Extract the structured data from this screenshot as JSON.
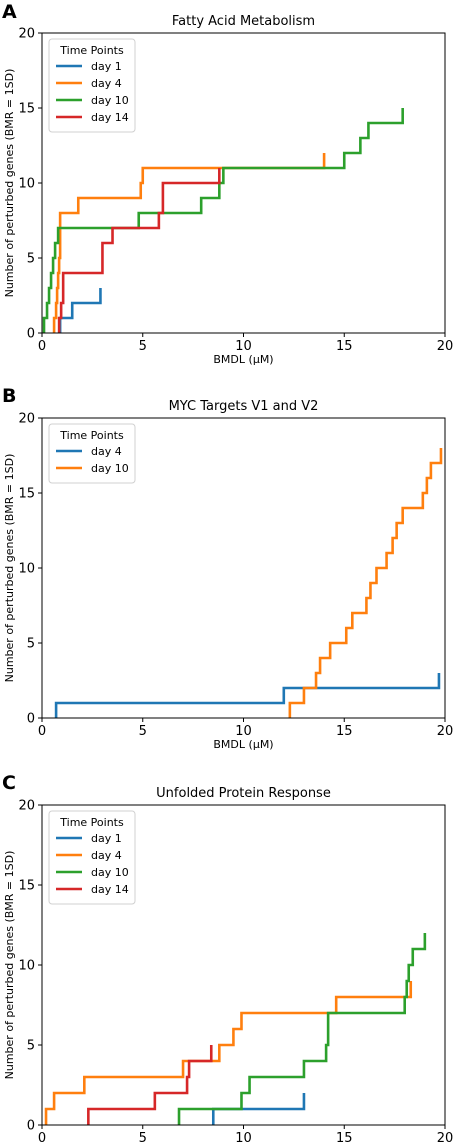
{
  "chart_data": [
    {
      "panel": "A",
      "type": "line",
      "title": "Fatty Acid Metabolism",
      "xlabel": "BMDL (μM)",
      "ylabel": "Number of perturbed genes (BMR = 1SD)",
      "xlim": [
        0,
        20
      ],
      "ylim": [
        0,
        20
      ],
      "xticks": [
        0,
        5,
        10,
        15,
        20
      ],
      "yticks": [
        0,
        5,
        10,
        15,
        20
      ],
      "legend": {
        "title": "Time Points",
        "placement": "top-left"
      },
      "series": [
        {
          "name": "day 1",
          "color": "#1f77b4",
          "x": [
            0.9,
            1.5,
            2.9
          ],
          "y": [
            1,
            2,
            3
          ]
        },
        {
          "name": "day 4",
          "color": "#ff7f0e",
          "x": [
            0.6,
            0.7,
            0.75,
            0.8,
            0.85,
            0.9,
            1.8,
            4.9,
            5.0,
            14.0
          ],
          "y": [
            1,
            2,
            3,
            4,
            5,
            8,
            9,
            10,
            11,
            12
          ]
        },
        {
          "name": "day 10",
          "color": "#2ca02c",
          "x": [
            0.1,
            0.25,
            0.35,
            0.45,
            0.55,
            0.65,
            0.8,
            0.9,
            4.8,
            5.8,
            7.9,
            8.8,
            9.0,
            14.1,
            15.0,
            15.8,
            16.2,
            17.9
          ],
          "y": [
            1,
            2,
            3,
            4,
            5,
            6,
            7,
            7,
            8,
            8,
            9,
            10,
            11,
            11,
            12,
            13,
            14,
            15
          ]
        },
        {
          "name": "day 14",
          "color": "#d62728",
          "x": [
            0.85,
            0.95,
            1.05,
            2.9,
            3.0,
            3.5,
            5.5,
            5.8,
            6.0,
            8.8
          ],
          "y": [
            1,
            2,
            4,
            4,
            6,
            7,
            7,
            8,
            10,
            11
          ]
        }
      ]
    },
    {
      "panel": "B",
      "type": "line",
      "title": "MYC Targets V1 and V2",
      "xlabel": "BMDL (μM)",
      "ylabel": "Number of perturbed genes (BMR = 1SD)",
      "xlim": [
        0,
        20
      ],
      "ylim": [
        0,
        20
      ],
      "xticks": [
        0,
        5,
        10,
        15,
        20
      ],
      "yticks": [
        0,
        5,
        10,
        15,
        20
      ],
      "legend": {
        "title": "Time Points",
        "placement": "top-left"
      },
      "series": [
        {
          "name": "day 4",
          "color": "#1f77b4",
          "x": [
            0.7,
            12.0,
            19.7
          ],
          "y": [
            1,
            2,
            3
          ]
        },
        {
          "name": "day 10",
          "color": "#ff7f0e",
          "x": [
            12.3,
            13.0,
            13.6,
            13.8,
            14.0,
            14.3,
            14.7,
            15.1,
            15.4,
            15.9,
            16.1,
            16.3,
            16.6,
            17.1,
            17.4,
            17.6,
            17.9,
            18.9,
            19.1,
            19.3,
            19.5,
            19.8
          ],
          "y": [
            1,
            2,
            3,
            4,
            4,
            5,
            5,
            6,
            7,
            7,
            8,
            9,
            10,
            11,
            12,
            13,
            14,
            15,
            16,
            17,
            17,
            18
          ]
        }
      ]
    },
    {
      "panel": "C",
      "type": "line",
      "title": "Unfolded Protein Response",
      "xlabel": "BMDL (μM)",
      "ylabel": "Number of perturbed genes (BMR = 1SD)",
      "xlim": [
        0,
        20
      ],
      "ylim": [
        0,
        20
      ],
      "xticks": [
        0,
        5,
        10,
        15,
        20
      ],
      "yticks": [
        0,
        5,
        10,
        15,
        20
      ],
      "legend": {
        "title": "Time Points",
        "placement": "top-left"
      },
      "series": [
        {
          "name": "day 1",
          "color": "#1f77b4",
          "x": [
            8.5,
            13.0
          ],
          "y": [
            1,
            2
          ]
        },
        {
          "name": "day 4",
          "color": "#ff7f0e",
          "x": [
            0.2,
            0.6,
            2.1,
            7.0,
            8.8,
            9.5,
            9.9,
            11.5,
            14.6,
            18.3
          ],
          "y": [
            1,
            2,
            3,
            4,
            5,
            6,
            7,
            7,
            8,
            9
          ]
        },
        {
          "name": "day 10",
          "color": "#2ca02c",
          "x": [
            6.8,
            9.9,
            10.3,
            13.0,
            14.1,
            14.2,
            18.0,
            18.1,
            18.2,
            18.4,
            19.0
          ],
          "y": [
            1,
            2,
            3,
            4,
            5,
            7,
            8,
            9,
            10,
            11,
            12
          ]
        },
        {
          "name": "day 14",
          "color": "#d62728",
          "x": [
            2.3,
            5.6,
            7.2,
            7.3,
            8.4
          ],
          "y": [
            1,
            2,
            3,
            4,
            5
          ]
        }
      ]
    }
  ]
}
